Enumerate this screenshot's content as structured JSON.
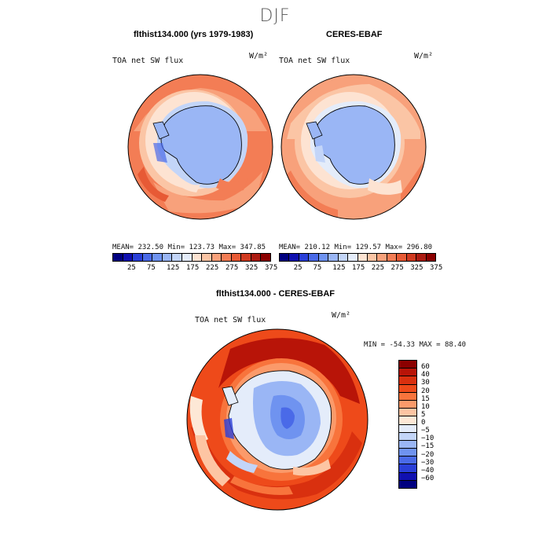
{
  "season": "DJF",
  "panels": {
    "model": {
      "title": "flthist134.000 (yrs 1979-1983)",
      "variable": "TOA net SW flux",
      "unit": "W/m²",
      "stats": "MEAN= 232.50   Min= 123.73   Max= 347.85"
    },
    "obs": {
      "title": "CERES-EBAF",
      "variable": "TOA net SW flux",
      "unit": "W/m²",
      "stats": "MEAN= 210.12   Min= 129.57   Max= 296.80"
    },
    "diff": {
      "title": "flthist134.000 - CERES-EBAF",
      "variable": "TOA net SW flux",
      "unit": "W/m²",
      "minmax": "MIN = -54.33  MAX =  88.40"
    }
  },
  "colorbar_abs": {
    "tick_labels": [
      "25",
      "75",
      "125",
      "175",
      "225",
      "275",
      "325",
      "375"
    ],
    "colors": [
      "#000080",
      "#1010b0",
      "#2a3fd8",
      "#4a6ae8",
      "#6f93f0",
      "#9ab6f5",
      "#c3d5f8",
      "#e4ecfa",
      "#fde3d2",
      "#fbc5a5",
      "#f8a17b",
      "#f37d55",
      "#e75a35",
      "#d03a20",
      "#ac1c12",
      "#8b0000"
    ]
  },
  "colorbar_diff": {
    "tick_labels": [
      "60",
      "40",
      "30",
      "20",
      "15",
      "10",
      "5",
      "0",
      "−5",
      "−10",
      "−15",
      "−20",
      "−30",
      "−40",
      "−60"
    ],
    "colors": [
      "#8b0000",
      "#b81408",
      "#d9300f",
      "#ee4a1a",
      "#f8743c",
      "#fb9a6a",
      "#fdc5a3",
      "#fde8d6",
      "#e4ecfa",
      "#c3d5f8",
      "#9ab6f5",
      "#6f93f0",
      "#4a6ae8",
      "#2a3fd8",
      "#1010b0",
      "#000080"
    ]
  }
}
